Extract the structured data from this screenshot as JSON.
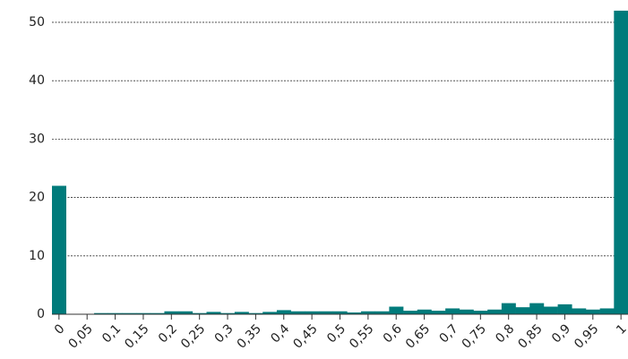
{
  "chart_data": {
    "type": "bar",
    "categories": [
      "0",
      null,
      "0,05",
      null,
      "0,1",
      null,
      "0,15",
      null,
      "0,2",
      null,
      "0,25",
      null,
      "0,3",
      null,
      "0,35",
      null,
      "0,4",
      null,
      "0,45",
      null,
      "0,5",
      null,
      "0,55",
      null,
      "0,6",
      null,
      "0,65",
      null,
      "0,7",
      null,
      "0,75",
      null,
      "0,8",
      null,
      "0,85",
      null,
      "0,9",
      null,
      "0,95",
      null,
      "1"
    ],
    "values": [
      22,
      0,
      0,
      0.2,
      0.2,
      0.2,
      0.2,
      0.2,
      0.5,
      0.5,
      0.2,
      0.4,
      0.2,
      0.4,
      0.2,
      0.4,
      0.7,
      0.5,
      0.5,
      0.5,
      0.5,
      0.3,
      0.5,
      0.5,
      1.3,
      0.6,
      0.8,
      0.6,
      1.0,
      0.8,
      0.6,
      0.8,
      1.9,
      1.2,
      1.9,
      1.3,
      1.7,
      1.0,
      0.8,
      1.0,
      52
    ],
    "color": "#007b7b",
    "ylim": [
      0,
      53
    ],
    "yticks": [
      0,
      10,
      20,
      30,
      40,
      50
    ],
    "grid": true
  }
}
